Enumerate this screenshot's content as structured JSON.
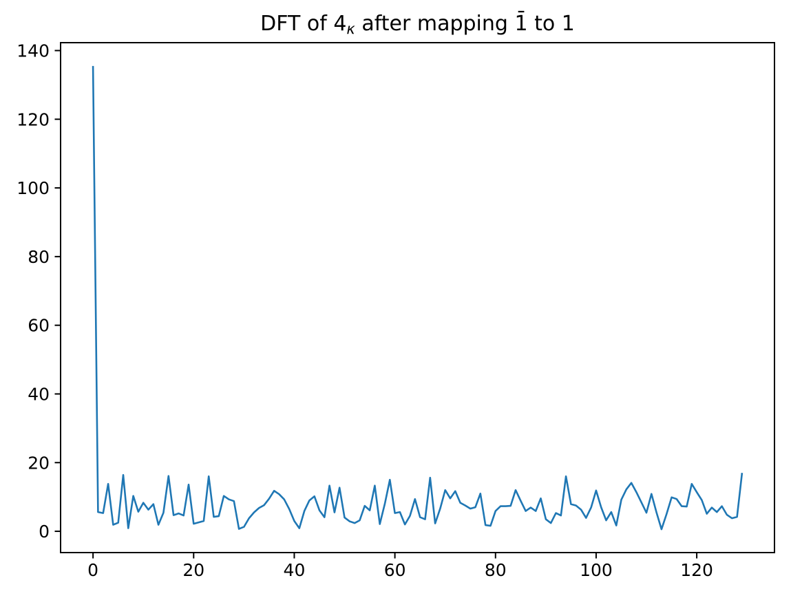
{
  "figure": {
    "title": {
      "prefix": "DFT of 4",
      "subscript": "κ",
      "suffix": " after mapping 1̄ to 1"
    },
    "background_color": "#ffffff",
    "text_color": "#000000"
  },
  "chart_data": {
    "type": "line",
    "title": "DFT of 4_κ after mapping 1̄ to 1",
    "xlabel": "",
    "ylabel": "",
    "legend": null,
    "grid": false,
    "line_color": "#1f77b4",
    "line_width": 2.6,
    "x_start": 0,
    "x_step": 1,
    "n_points": 130,
    "values": [
      135.5,
      5.6,
      5.3,
      13.8,
      1.9,
      2.5,
      16.4,
      0.9,
      10.3,
      5.7,
      8.3,
      6.3,
      7.9,
      1.9,
      5.4,
      16.1,
      4.7,
      5.2,
      4.6,
      13.6,
      2.2,
      2.6,
      3.0,
      16.0,
      4.2,
      4.4,
      10.3,
      9.3,
      8.8,
      0.7,
      1.3,
      3.8,
      5.5,
      6.8,
      7.6,
      9.5,
      11.8,
      10.8,
      9.3,
      6.5,
      3.0,
      0.9,
      5.9,
      9.0,
      10.2,
      6.1,
      4.1,
      13.3,
      5.5,
      12.7,
      4.0,
      2.9,
      2.4,
      3.2,
      7.4,
      6.1,
      13.3,
      2.1,
      8.0,
      15.0,
      5.3,
      5.6,
      2.0,
      4.5,
      9.4,
      4.1,
      3.5,
      15.6,
      2.3,
      6.6,
      12.0,
      9.6,
      11.7,
      8.3,
      7.5,
      6.6,
      7.0,
      11.0,
      1.8,
      1.6,
      5.9,
      7.3,
      7.3,
      7.4,
      12.0,
      8.9,
      5.9,
      6.9,
      5.9,
      9.6,
      3.5,
      2.4,
      5.3,
      4.6,
      16.0,
      7.9,
      7.5,
      6.3,
      3.9,
      6.9,
      11.9,
      7.0,
      3.2,
      5.6,
      1.7,
      9.2,
      12.2,
      14.1,
      11.4,
      8.4,
      5.4,
      10.9,
      5.5,
      0.6,
      5.0,
      9.9,
      9.4,
      7.3,
      7.2,
      13.8,
      11.4,
      9.1,
      5.1,
      6.9,
      5.6,
      7.3,
      4.8,
      3.8,
      4.2,
      17.0
    ],
    "xticks": [
      0,
      20,
      40,
      60,
      80,
      100,
      120
    ],
    "yticks": [
      0,
      20,
      40,
      60,
      80,
      100,
      120,
      140
    ],
    "xlim": [
      -6.45,
      135.45
    ],
    "ylim": [
      -6.2,
      142.3
    ],
    "legend_position": "none"
  }
}
